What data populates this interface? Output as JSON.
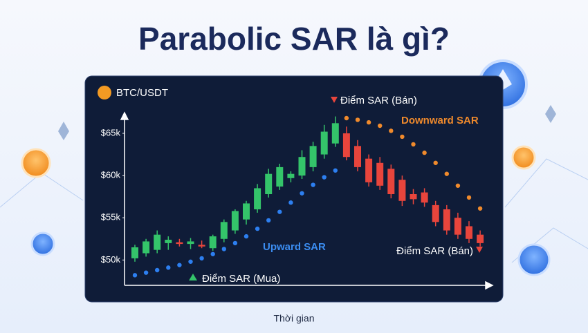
{
  "chart_data": {
    "type": "candlestick",
    "title": "Parabolic SAR là gì?",
    "pair": "BTC/USDT",
    "x_label": "Thời gian",
    "ylim": [
      47000,
      67700
    ],
    "yticks": [
      {
        "value": 50000,
        "label": "$50k"
      },
      {
        "value": 55000,
        "label": "$55k"
      },
      {
        "value": 60000,
        "label": "$60k"
      },
      {
        "value": 65000,
        "label": "$65k"
      }
    ],
    "up_color": "#34c46a",
    "down_color": "#e8453c",
    "open": [
      50200,
      50800,
      51200,
      52000,
      52100,
      51900,
      51800,
      51400,
      52500,
      53500,
      54800,
      56000,
      57800,
      58700,
      59700,
      60000,
      61000,
      62500,
      63800,
      65000,
      63500,
      62000,
      61500,
      60800,
      59500,
      57800,
      58000,
      56500,
      56000,
      55000,
      54000,
      53000
    ],
    "high": [
      51800,
      52500,
      53500,
      52800,
      52500,
      52600,
      52300,
      53000,
      54800,
      56000,
      57000,
      59000,
      60800,
      61400,
      60500,
      63000,
      64000,
      66000,
      67000,
      65800,
      64200,
      62500,
      62200,
      61300,
      60000,
      58400,
      58500,
      57000,
      56500,
      55600,
      54600,
      53500
    ],
    "low": [
      49800,
      50400,
      50800,
      51200,
      51600,
      51300,
      51400,
      51100,
      52100,
      53100,
      54200,
      55600,
      57400,
      58300,
      59200,
      59600,
      60500,
      62000,
      63400,
      61800,
      60500,
      58700,
      58300,
      57300,
      56400,
      56600,
      56300,
      54000,
      53000,
      52500,
      52000,
      51600
    ],
    "close": [
      51500,
      52200,
      53000,
      52400,
      51900,
      52200,
      51600,
      52800,
      54500,
      55800,
      56700,
      58500,
      60200,
      61000,
      60200,
      62200,
      63500,
      65200,
      66200,
      62200,
      61000,
      59200,
      58800,
      57800,
      57000,
      57200,
      56800,
      54500,
      53500,
      53000,
      52500,
      52000
    ],
    "sar_up": {
      "color": "#2d7ff0",
      "values": [
        48200,
        48500,
        48800,
        49100,
        49400,
        49800,
        50200,
        50700,
        51300,
        52000,
        52800,
        53700,
        54700,
        55700,
        56800,
        57900,
        58900,
        59800,
        60600,
        null,
        null,
        null,
        null,
        null,
        null,
        null,
        null,
        null,
        null,
        null,
        null,
        null
      ]
    },
    "sar_down": {
      "color": "#f08a2c",
      "values": [
        null,
        null,
        null,
        null,
        null,
        null,
        null,
        null,
        null,
        null,
        null,
        null,
        null,
        null,
        null,
        null,
        null,
        null,
        null,
        66800,
        66600,
        66300,
        65900,
        65300,
        64600,
        63700,
        62700,
        61500,
        60200,
        58800,
        57400,
        56100
      ]
    },
    "annotations": [
      {
        "text": "Điểm SAR (Bán)",
        "color": "#ffffff"
      },
      {
        "text": "Downward SAR",
        "color": "#f08a2c"
      },
      {
        "text": "Upward SAR",
        "color": "#3b8cf0"
      },
      {
        "text": "Điểm SAR (Mua)",
        "color": "#ffffff"
      },
      {
        "text": "Điểm SAR (Bán)",
        "color": "#ffffff"
      }
    ]
  }
}
